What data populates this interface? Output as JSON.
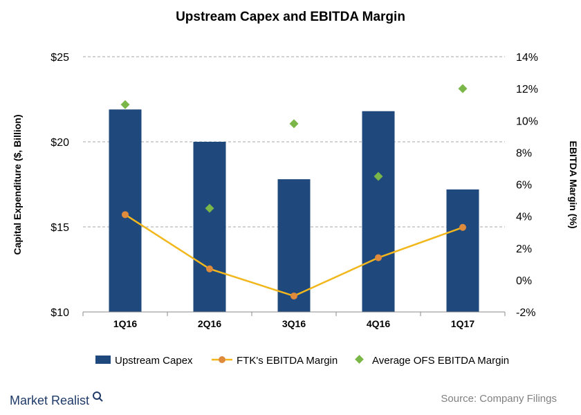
{
  "chart_data": {
    "type": "bar",
    "title": "Upstream  Capex and EBITDA Margin",
    "categories": [
      "1Q16",
      "2Q16",
      "3Q16",
      "4Q16",
      "1Q17"
    ],
    "y_left": {
      "label": "Capital Expenditure ($, Billion)",
      "range": [
        10,
        25
      ],
      "ticks": [
        10,
        15,
        20,
        25
      ],
      "tick_labels": [
        "$10",
        "$15",
        "$20",
        "$25"
      ]
    },
    "y_right": {
      "label": "EBITDA Margin (%)",
      "range": [
        -2,
        14
      ],
      "ticks": [
        -2,
        0,
        2,
        4,
        6,
        8,
        10,
        12,
        14
      ],
      "tick_labels": [
        "-2%",
        "0%",
        "2%",
        "4%",
        "6%",
        "8%",
        "10%",
        "12%",
        "14%"
      ]
    },
    "grid": true,
    "legend_position": "bottom",
    "series": [
      {
        "name": "Upstream Capex",
        "type": "bar",
        "axis": "left",
        "color": "#1f497d",
        "values": [
          21.9,
          20.0,
          17.8,
          21.8,
          17.2
        ]
      },
      {
        "name": "FTK's EBITDA Margin",
        "type": "line",
        "axis": "right",
        "color": "#f2b71c",
        "marker_color": "#e08a3c",
        "values": [
          4.1,
          0.7,
          -1.0,
          1.4,
          3.3
        ]
      },
      {
        "name": "Average OFS EBITDA Margin",
        "type": "scatter",
        "axis": "right",
        "color": "#7ab648",
        "values": [
          11.0,
          4.5,
          9.8,
          6.5,
          12.0
        ]
      }
    ]
  },
  "footer": {
    "brand": "Market Realist",
    "source": "Source:  Company Filings"
  }
}
